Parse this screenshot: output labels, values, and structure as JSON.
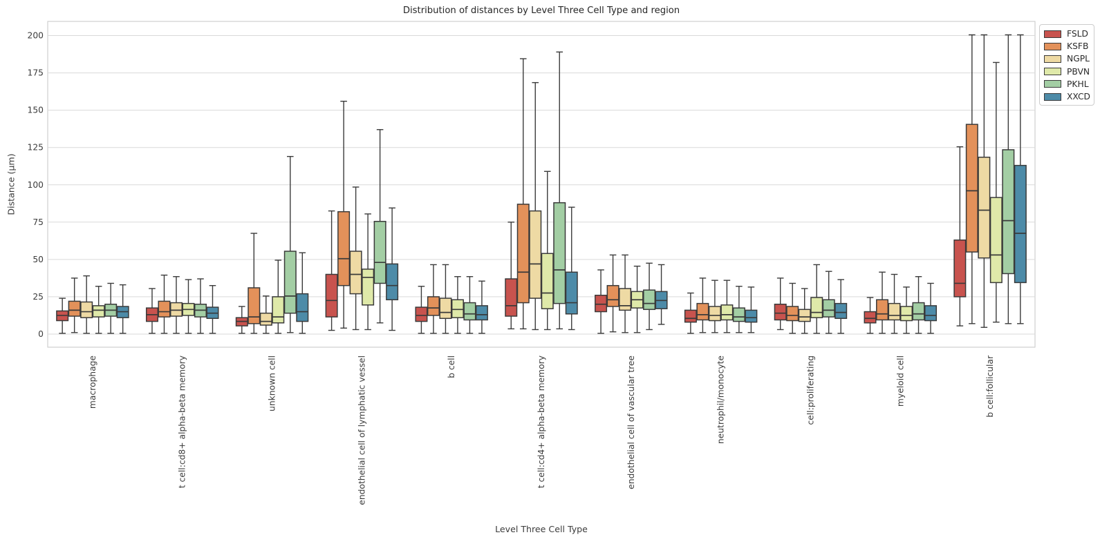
{
  "chart_data": {
    "type": "box",
    "title": "Distribution of distances by Level Three Cell Type and region",
    "xlabel": "Level Three Cell Type",
    "ylabel": "Distance (μm)",
    "ylim": [
      -8.8,
      209.5
    ],
    "yticks": [
      0,
      25,
      50,
      75,
      100,
      125,
      150,
      175,
      200
    ],
    "grid": true,
    "legend": {
      "position": "outside-upper-right",
      "entries": [
        "FSLD",
        "KSFB",
        "NGPL",
        "PBVN",
        "PKHL",
        "XXCD"
      ]
    },
    "box_stats_order": [
      "whisker_low",
      "q1",
      "median",
      "q3",
      "whisker_high"
    ],
    "categories": [
      "macrophage",
      "t cell:cd8+ alpha-beta memory",
      "unknown cell",
      "endothelial cell of lymphatic vessel",
      "b cell",
      "t cell:cd4+ alpha-beta memory",
      "endothelial cell of vascular tree",
      "neutrophil/monocyte",
      "cell:proliferating",
      "myeloid cell",
      "b cell:follicular"
    ],
    "series": [
      {
        "name": "FSLD",
        "color": "#c8534e",
        "boxes": [
          [
            0.5,
            9,
            12.5,
            15.5,
            24
          ],
          [
            0.5,
            8.5,
            13,
            17.5,
            30.5
          ],
          [
            0.5,
            5.5,
            8.5,
            11,
            18.5
          ],
          [
            2.5,
            11.5,
            22.5,
            40,
            82.5
          ],
          [
            0.5,
            8.5,
            12.5,
            18,
            32
          ],
          [
            3.5,
            12,
            19,
            37,
            75
          ],
          [
            0.5,
            15,
            20,
            26,
            43
          ],
          [
            0.5,
            8,
            10.5,
            16,
            27.5
          ],
          [
            3,
            9.5,
            14,
            20,
            37.5
          ],
          [
            0.5,
            7.5,
            10.5,
            15,
            24.5
          ],
          [
            5.5,
            25,
            34,
            63,
            125.5
          ]
        ]
      },
      {
        "name": "KSFB",
        "color": "#e3915a",
        "boxes": [
          [
            1,
            12,
            16,
            22,
            37.5
          ],
          [
            0.5,
            11.5,
            15,
            22,
            39.5
          ],
          [
            0.5,
            7,
            11.5,
            31,
            67.5
          ],
          [
            4,
            32.5,
            50.5,
            82,
            156
          ],
          [
            0.5,
            12.5,
            17.5,
            25,
            46.5
          ],
          [
            3.5,
            21,
            41.5,
            87,
            184.5
          ],
          [
            1.5,
            18.5,
            23,
            32.5,
            53
          ],
          [
            1,
            9.5,
            13,
            20.5,
            37.5
          ],
          [
            0.5,
            9,
            12.5,
            18.5,
            34
          ],
          [
            0.5,
            9.5,
            13.5,
            23,
            41.5
          ],
          [
            7,
            55,
            96,
            140.5,
            200.5
          ]
        ]
      },
      {
        "name": "NGPL",
        "color": "#eedaa4",
        "boxes": [
          [
            0.5,
            11,
            15,
            21.5,
            39
          ],
          [
            0.5,
            12,
            16,
            21,
            38.5
          ],
          [
            0.5,
            6,
            8.5,
            14,
            25.5
          ],
          [
            3,
            27,
            40,
            55.5,
            98.5
          ],
          [
            0.5,
            10.5,
            14.5,
            24,
            46.5
          ],
          [
            3,
            24,
            47,
            82.5,
            168.5
          ],
          [
            1,
            16,
            19,
            30.5,
            53
          ],
          [
            1,
            9,
            12.5,
            18.5,
            36
          ],
          [
            0.5,
            8.5,
            11.5,
            16.5,
            30.5
          ],
          [
            0.5,
            9.5,
            12.5,
            20.5,
            40
          ],
          [
            4.5,
            51,
            83,
            118.5,
            200.5
          ]
        ]
      },
      {
        "name": "PBVN",
        "color": "#dfe9a9",
        "boxes": [
          [
            0.5,
            11.5,
            16,
            19,
            32
          ],
          [
            0.5,
            12.5,
            16.5,
            20.5,
            36.5
          ],
          [
            0.5,
            7.5,
            11.5,
            25,
            49.5
          ],
          [
            3,
            19.5,
            38,
            43.5,
            80.5
          ],
          [
            0.5,
            11,
            16.5,
            23,
            38.5
          ],
          [
            3,
            17,
            27.5,
            54,
            109
          ],
          [
            1,
            17.5,
            23,
            28.5,
            45.5
          ],
          [
            1,
            9.5,
            13,
            19.5,
            36
          ],
          [
            0.5,
            11,
            14.5,
            24.5,
            46.5
          ],
          [
            0.5,
            9,
            12.5,
            18.5,
            31.5
          ],
          [
            8,
            34.5,
            53,
            91.5,
            182
          ]
        ]
      },
      {
        "name": "PKHL",
        "color": "#a3cea4",
        "boxes": [
          [
            0.5,
            12,
            16,
            20,
            34
          ],
          [
            0.5,
            11.5,
            16,
            20,
            37
          ],
          [
            1,
            14,
            25.5,
            55.5,
            119
          ],
          [
            7.5,
            34,
            48,
            75.5,
            137
          ],
          [
            0.5,
            9.5,
            13.5,
            21,
            38.5
          ],
          [
            3.5,
            20.5,
            43,
            88,
            189
          ],
          [
            3,
            16.5,
            20.5,
            29.5,
            47.5
          ],
          [
            1,
            8.5,
            11.5,
            17.5,
            32
          ],
          [
            0.5,
            11.5,
            16,
            23,
            42
          ],
          [
            0.5,
            9.5,
            13.5,
            21,
            38.5
          ],
          [
            7,
            40.5,
            76,
            123.5,
            200.5
          ]
        ]
      },
      {
        "name": "XXCD",
        "color": "#4d8ba8",
        "boxes": [
          [
            0.5,
            11,
            15,
            18.5,
            33
          ],
          [
            0.5,
            10.5,
            14,
            18,
            32.5
          ],
          [
            0.5,
            8.5,
            15,
            27,
            54.5
          ],
          [
            2.5,
            23,
            32.5,
            47,
            84.5
          ],
          [
            0.5,
            9.5,
            13,
            19,
            35.5
          ],
          [
            3,
            13.5,
            21,
            41.5,
            85
          ],
          [
            6.5,
            17,
            22.5,
            28.5,
            46.5
          ],
          [
            1,
            8,
            11,
            16,
            31.5
          ],
          [
            0.5,
            10.5,
            14.5,
            20.5,
            36.5
          ],
          [
            0.5,
            9,
            12.5,
            19,
            34
          ],
          [
            7,
            34.5,
            67.5,
            113,
            200.5
          ]
        ]
      }
    ]
  }
}
